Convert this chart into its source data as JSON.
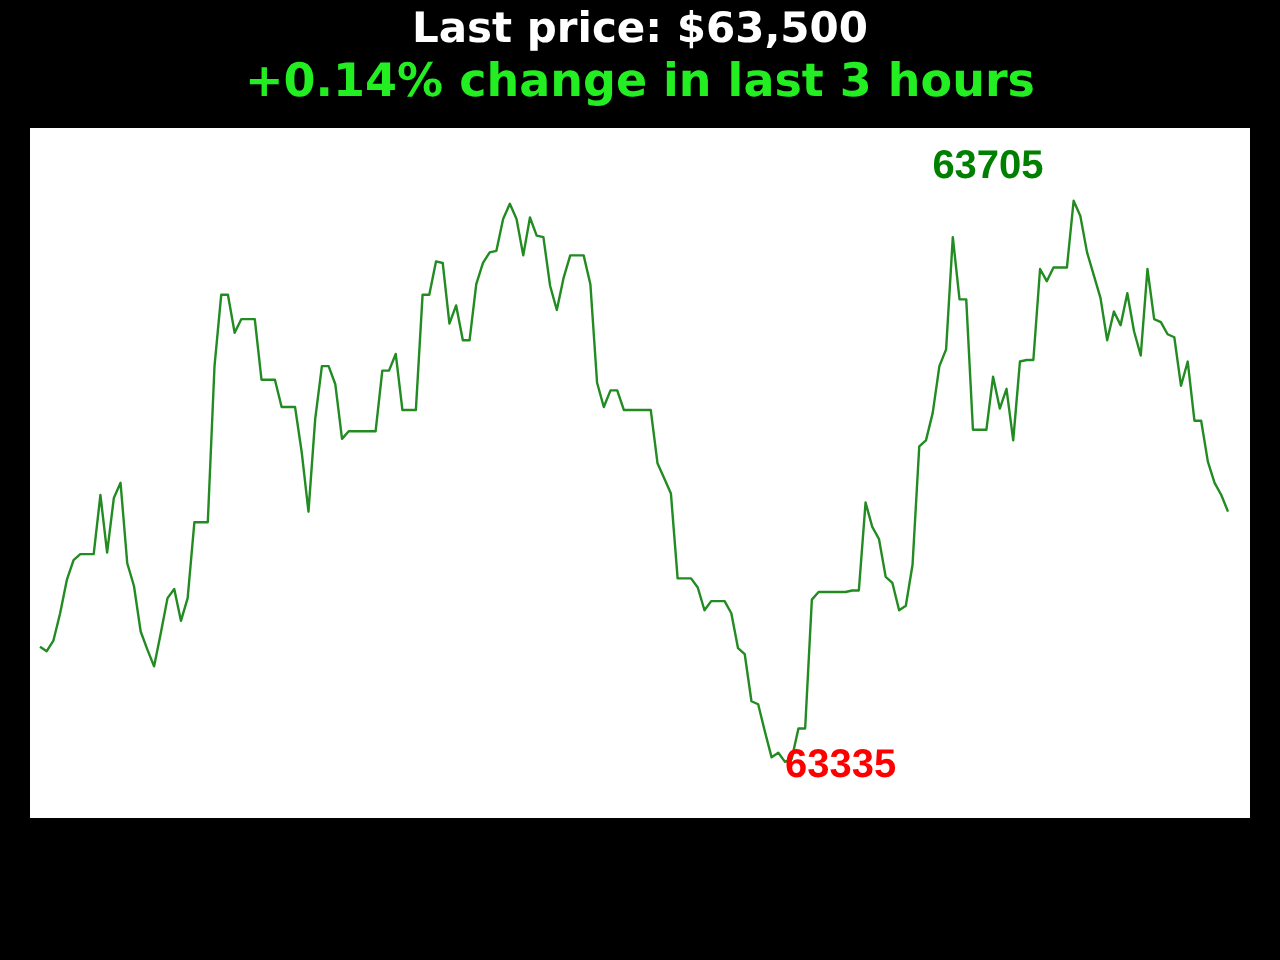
{
  "chart_data": {
    "type": "line",
    "title": "Last price: $63,500",
    "subtitle": "+0.14% change in last 3 hours",
    "categories": [
      null,
      null,
      null,
      null,
      null,
      null,
      null,
      null,
      null,
      null,
      null,
      null,
      null,
      null,
      null,
      null,
      null,
      null,
      null,
      null,
      null,
      null,
      null,
      null,
      null,
      null,
      null,
      null,
      null,
      null,
      null,
      null,
      null,
      null,
      null,
      null,
      null,
      null,
      null,
      null,
      null,
      null,
      null,
      null,
      null,
      null,
      null,
      null,
      null,
      null,
      null,
      null,
      null,
      null,
      null,
      null,
      null,
      null,
      null,
      null,
      null,
      null,
      null,
      null,
      null,
      null,
      null,
      null,
      null,
      null,
      null,
      null,
      null,
      null,
      null,
      null,
      null,
      null,
      null,
      null,
      null,
      null,
      null,
      null,
      null,
      null,
      null,
      null,
      null,
      null,
      null,
      null,
      null,
      null,
      null,
      null,
      null,
      null,
      null,
      null,
      null,
      null,
      null,
      null,
      null,
      null,
      null,
      null,
      null,
      null,
      null,
      null,
      null,
      null,
      null,
      null,
      null,
      null,
      null,
      null,
      null,
      null,
      null,
      null,
      null,
      null,
      null,
      null,
      null,
      null,
      null,
      null,
      null,
      null,
      null,
      null,
      null,
      null,
      null,
      null,
      null,
      null,
      null,
      null,
      null,
      null,
      null,
      null,
      null,
      null,
      null,
      null,
      null,
      null,
      null,
      null,
      null,
      null,
      null,
      null,
      null,
      null,
      null,
      null,
      null,
      null,
      null,
      null,
      null,
      null,
      null,
      null,
      null,
      null,
      null,
      null,
      null,
      null
    ],
    "values": [
      63411,
      63408,
      63415,
      63433,
      63455,
      63468,
      63472,
      63472,
      63472,
      63511,
      63473,
      63509,
      63519,
      63466,
      63451,
      63421,
      63409,
      63398,
      63420,
      63443,
      63449,
      63428,
      63443,
      63493,
      63493,
      63493,
      63596,
      63643,
      63643,
      63618,
      63627,
      63627,
      63627,
      63587,
      63587,
      63587,
      63569,
      63569,
      63569,
      63539,
      63500,
      63561,
      63596,
      63596,
      63584,
      63548,
      63553,
      63553,
      63553,
      63553,
      63553,
      63593,
      63593,
      63604,
      63567,
      63567,
      63567,
      63643,
      63643,
      63665,
      63664,
      63624,
      63636,
      63613,
      63613,
      63650,
      63664,
      63671,
      63672,
      63693,
      63703,
      63693,
      63669,
      63694,
      63682,
      63681,
      63649,
      63633,
      63654,
      63669,
      63669,
      63669,
      63650,
      63585,
      63569,
      63580,
      63580,
      63567,
      63567,
      63567,
      63567,
      63567,
      63532,
      63522,
      63512,
      63456,
      63456,
      63456,
      63450,
      63435,
      63441,
      63441,
      63441,
      63433,
      63410,
      63406,
      63375,
      63373,
      63355,
      63338,
      63341,
      63335,
      63337,
      63357,
      63357,
      63442,
      63447,
      63447,
      63447,
      63447,
      63447,
      63448,
      63448,
      63506,
      63490,
      63482,
      63457,
      63453,
      63435,
      63438,
      63465,
      63543,
      63547,
      63565,
      63596,
      63607,
      63681,
      63640,
      63640,
      63554,
      63554,
      63554,
      63589,
      63568,
      63581,
      63547,
      63599,
      63600,
      63600,
      63660,
      63652,
      63661,
      63661,
      63661,
      63705,
      63695,
      63671,
      63656,
      63641,
      63613,
      63632,
      63623,
      63644,
      63619,
      63603,
      63660,
      63627,
      63625,
      63617,
      63615,
      63583,
      63599,
      63560,
      63560,
      63533,
      63519,
      63511,
      63500
    ],
    "value_labels": [
      null,
      null,
      null,
      null,
      null,
      null,
      null,
      null,
      null,
      null,
      null,
      null,
      null,
      null,
      null,
      null,
      null,
      null,
      null,
      null,
      null,
      null,
      null,
      null,
      null,
      null,
      null,
      null,
      null,
      null,
      null,
      null,
      null,
      null,
      null,
      null,
      null,
      null,
      null,
      null,
      null,
      null,
      null,
      null,
      null,
      null,
      null,
      null,
      null,
      null,
      null,
      null,
      null,
      null,
      null,
      null,
      null,
      null,
      null,
      null,
      null,
      null,
      null,
      null,
      null,
      null,
      null,
      null,
      null,
      null,
      null,
      null,
      null,
      null,
      null,
      null,
      null,
      null,
      null,
      null,
      null,
      null,
      null,
      null,
      null,
      null,
      null,
      null,
      null,
      null,
      null,
      null,
      null,
      null,
      null,
      null,
      null,
      null,
      null,
      null,
      null,
      null,
      null,
      null,
      null,
      null,
      null,
      null,
      null,
      null,
      null,
      "63335",
      null,
      null,
      null,
      null,
      null,
      null,
      null,
      null,
      null,
      null,
      null,
      null,
      null,
      null,
      null,
      null,
      null,
      null,
      null,
      null,
      null,
      null,
      null,
      null,
      null,
      null,
      null,
      null,
      null,
      null,
      null,
      null,
      null,
      null,
      null,
      null,
      null,
      null,
      null,
      null,
      null,
      null,
      "63705",
      null,
      null,
      null,
      null,
      null,
      null,
      null,
      null,
      null,
      null,
      null,
      null,
      null,
      null,
      null,
      null,
      null,
      null,
      null,
      null,
      null,
      null,
      null
    ],
    "color": "#228b22",
    "ylim": [
      63298,
      63753
    ],
    "tick_labels": false,
    "marker": "none",
    "line_style": "solid"
  }
}
